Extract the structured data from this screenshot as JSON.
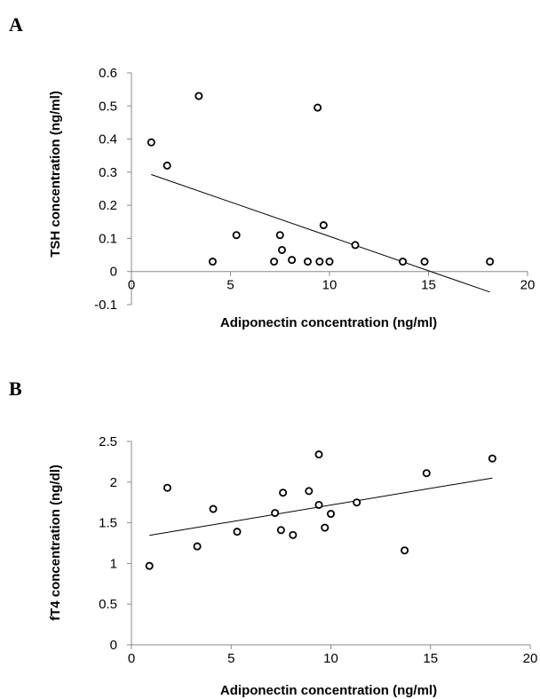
{
  "chart_data": [
    {
      "panel_label": "A",
      "type": "scatter",
      "xlabel": "Adiponectin concentration (ng/ml)",
      "ylabel": "TSH concentration (ng/ml)",
      "xlim": [
        0,
        20
      ],
      "ylim": [
        -0.1,
        0.6
      ],
      "x_ticks": [
        "0",
        "5",
        "10",
        "15",
        "20"
      ],
      "y_ticks": [
        "0.6",
        "0.5",
        "0.4",
        "0.3",
        "0.2",
        "0.1",
        "0",
        "-0.1"
      ],
      "grid": false,
      "points": [
        {
          "x": 1.0,
          "y": 0.39
        },
        {
          "x": 1.8,
          "y": 0.32
        },
        {
          "x": 3.4,
          "y": 0.53
        },
        {
          "x": 4.1,
          "y": 0.03
        },
        {
          "x": 5.3,
          "y": 0.11
        },
        {
          "x": 7.2,
          "y": 0.03
        },
        {
          "x": 7.5,
          "y": 0.11
        },
        {
          "x": 7.6,
          "y": 0.065
        },
        {
          "x": 8.1,
          "y": 0.035
        },
        {
          "x": 8.9,
          "y": 0.03
        },
        {
          "x": 9.4,
          "y": 0.495
        },
        {
          "x": 9.5,
          "y": 0.03
        },
        {
          "x": 9.7,
          "y": 0.14
        },
        {
          "x": 10.0,
          "y": 0.03
        },
        {
          "x": 11.3,
          "y": 0.08
        },
        {
          "x": 13.7,
          "y": 0.03
        },
        {
          "x": 14.8,
          "y": 0.03
        },
        {
          "x": 18.1,
          "y": 0.03
        }
      ],
      "trendline": {
        "x": [
          1.0,
          18.1
        ],
        "y": [
          0.293,
          -0.062
        ]
      }
    },
    {
      "panel_label": "B",
      "type": "scatter",
      "xlabel": "Adiponectin concentration (ng/ml)",
      "ylabel": "fT4 concentration (ng/dl)",
      "xlim": [
        0,
        20
      ],
      "ylim": [
        0,
        2.5
      ],
      "x_ticks": [
        "0",
        "5",
        "10",
        "15",
        "20"
      ],
      "y_ticks": [
        "2.5",
        "2",
        "1.5",
        "1",
        "0.5",
        "0"
      ],
      "grid": false,
      "points": [
        {
          "x": 0.9,
          "y": 0.97
        },
        {
          "x": 1.8,
          "y": 1.93
        },
        {
          "x": 3.3,
          "y": 1.21
        },
        {
          "x": 4.1,
          "y": 1.67
        },
        {
          "x": 5.3,
          "y": 1.39
        },
        {
          "x": 7.2,
          "y": 1.62
        },
        {
          "x": 7.5,
          "y": 1.41
        },
        {
          "x": 7.6,
          "y": 1.87
        },
        {
          "x": 8.1,
          "y": 1.35
        },
        {
          "x": 8.9,
          "y": 1.89
        },
        {
          "x": 9.4,
          "y": 2.34
        },
        {
          "x": 9.4,
          "y": 1.72
        },
        {
          "x": 9.7,
          "y": 1.44
        },
        {
          "x": 10.0,
          "y": 1.61
        },
        {
          "x": 11.3,
          "y": 1.75
        },
        {
          "x": 13.7,
          "y": 1.16
        },
        {
          "x": 14.8,
          "y": 2.11
        },
        {
          "x": 18.1,
          "y": 2.29
        }
      ],
      "trendline": {
        "x": [
          0.9,
          18.1
        ],
        "y": [
          1.345,
          2.05
        ]
      }
    }
  ]
}
